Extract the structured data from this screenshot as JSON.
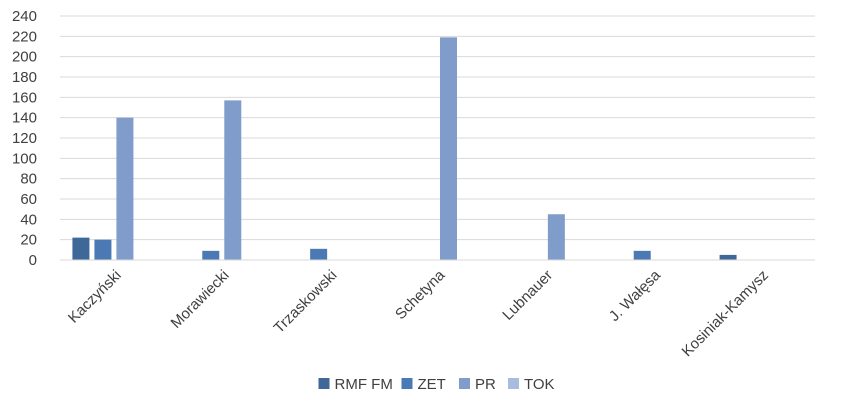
{
  "chart_data": {
    "type": "bar",
    "title": "",
    "xlabel": "",
    "ylabel": "",
    "ylim": [
      0,
      240
    ],
    "ytick_step": 20,
    "grid": true,
    "legend_position": "bottom",
    "categories": [
      "Kaczyński",
      "Morawiecki",
      "Trzaskowski",
      "Schetyna",
      "Lubnauer",
      "J. Wałęsa",
      "Kosiniak-Kamysz"
    ],
    "series": [
      {
        "name": "RMF FM",
        "color": "#3d6898",
        "values": [
          22,
          0,
          0,
          0,
          0,
          0,
          5
        ]
      },
      {
        "name": "ZET",
        "color": "#4a79b3",
        "values": [
          20,
          9,
          11,
          0,
          0,
          9,
          0
        ]
      },
      {
        "name": "PR",
        "color": "#7f9cca",
        "values": [
          140,
          157,
          0,
          219,
          45,
          0,
          0
        ]
      },
      {
        "name": "TOK",
        "color": "#a9bcdd",
        "values": [
          0,
          0,
          0,
          0,
          0,
          0,
          0
        ]
      }
    ]
  }
}
